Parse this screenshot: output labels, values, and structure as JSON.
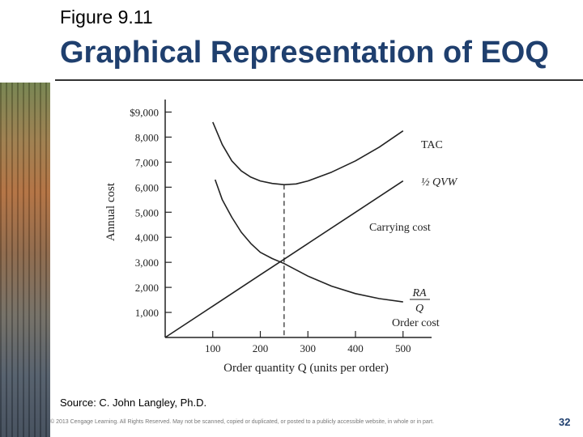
{
  "slide": {
    "figure_label": "Figure 9.11",
    "title": "Graphical Representation of EOQ",
    "source": "Source: C. John Langley, Ph.D.",
    "copyright": "© 2013 Cengage Learning. All Rights Reserved. May not be scanned, copied or duplicated, or posted to a publicly accessible website, in whole or in part.",
    "page_number": "32",
    "accent_color": "#1f3f6e"
  },
  "chart_data": {
    "type": "line",
    "title": "",
    "xlabel": "Order quantity Q (units per order)",
    "ylabel": "Annual cost",
    "xlim": [
      0,
      560
    ],
    "ylim": [
      0,
      9500
    ],
    "x_ticks": [
      100,
      200,
      300,
      400,
      500
    ],
    "x_tick_labels": [
      "100",
      "200",
      "300",
      "400",
      "500"
    ],
    "y_ticks": [
      1000,
      2000,
      3000,
      4000,
      5000,
      6000,
      7000,
      8000,
      9000
    ],
    "y_tick_labels": [
      "1,000",
      "2,000",
      "3,000",
      "4,000",
      "5,000",
      "6,000",
      "7,000",
      "8,000",
      "$9,000"
    ],
    "eoq_x": 250,
    "series": [
      {
        "name": "TAC",
        "points": [
          [
            100,
            8600
          ],
          [
            120,
            7700
          ],
          [
            140,
            7050
          ],
          [
            160,
            6650
          ],
          [
            180,
            6400
          ],
          [
            200,
            6250
          ],
          [
            225,
            6150
          ],
          [
            250,
            6100
          ],
          [
            275,
            6130
          ],
          [
            300,
            6250
          ],
          [
            350,
            6600
          ],
          [
            400,
            7050
          ],
          [
            450,
            7600
          ],
          [
            500,
            8250
          ]
        ]
      },
      {
        "name": "Carrying cost",
        "label_lines": [
          "½ QVW",
          "Carrying cost"
        ],
        "points": [
          [
            0,
            0
          ],
          [
            100,
            1250
          ],
          [
            200,
            2500
          ],
          [
            250,
            3125
          ],
          [
            300,
            3750
          ],
          [
            400,
            5000
          ],
          [
            500,
            6250
          ]
        ]
      },
      {
        "name": "Order cost",
        "label_lines": [
          "RA",
          "Q",
          "Order cost"
        ],
        "points": [
          [
            105,
            6300
          ],
          [
            120,
            5500
          ],
          [
            140,
            4800
          ],
          [
            160,
            4200
          ],
          [
            180,
            3750
          ],
          [
            200,
            3400
          ],
          [
            225,
            3150
          ],
          [
            250,
            2950
          ],
          [
            275,
            2700
          ],
          [
            300,
            2450
          ],
          [
            350,
            2050
          ],
          [
            400,
            1750
          ],
          [
            450,
            1550
          ],
          [
            500,
            1420
          ]
        ]
      }
    ],
    "grid": false
  }
}
